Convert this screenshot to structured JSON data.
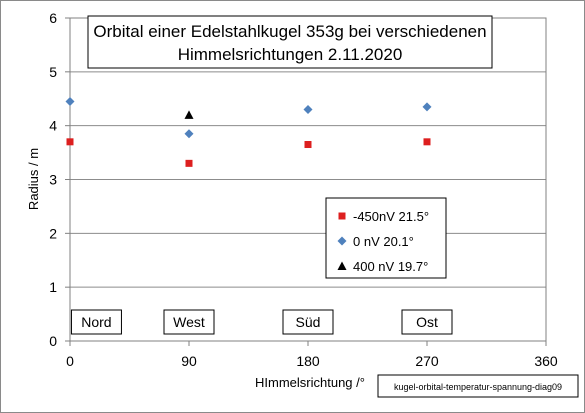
{
  "chart_data": {
    "type": "scatter",
    "title_line1": "Orbital einer  Edelstahlkugel 353g bei verschiedenen",
    "title_line2": "Himmelsrichtungen 2.11.2020",
    "xlabel": "HImmelsrichtung /°",
    "ylabel": "Radius / m",
    "xlim": [
      0,
      360
    ],
    "ylim": [
      0,
      6
    ],
    "xticks": [
      0,
      90,
      180,
      270,
      360
    ],
    "yticks": [
      0,
      1,
      2,
      3,
      4,
      5,
      6
    ],
    "grid": "horizontal",
    "legend_position": "lower-right inside plot",
    "series": [
      {
        "name": "-450nV  21.5°",
        "marker": "square",
        "color": "#dd1f1f",
        "points": [
          [
            0,
            3.7
          ],
          [
            90,
            3.3
          ],
          [
            180,
            3.65
          ],
          [
            270,
            3.7
          ]
        ]
      },
      {
        "name": "0 nV  20.1°",
        "marker": "diamond",
        "color": "#4f81bd",
        "points": [
          [
            0,
            4.45
          ],
          [
            90,
            3.85
          ],
          [
            180,
            4.3
          ],
          [
            270,
            4.35
          ]
        ]
      },
      {
        "name": "400 nV 19.7°",
        "marker": "triangle",
        "color": "#000000",
        "points": [
          [
            90,
            4.2
          ]
        ]
      }
    ],
    "direction_labels": [
      {
        "text": "Nord",
        "x": 20
      },
      {
        "text": "West",
        "x": 90
      },
      {
        "text": "Süd",
        "x": 180
      },
      {
        "text": "Ost",
        "x": 270
      }
    ],
    "source_label": "kugel-orbital-temperatur-spannung-diag09"
  }
}
